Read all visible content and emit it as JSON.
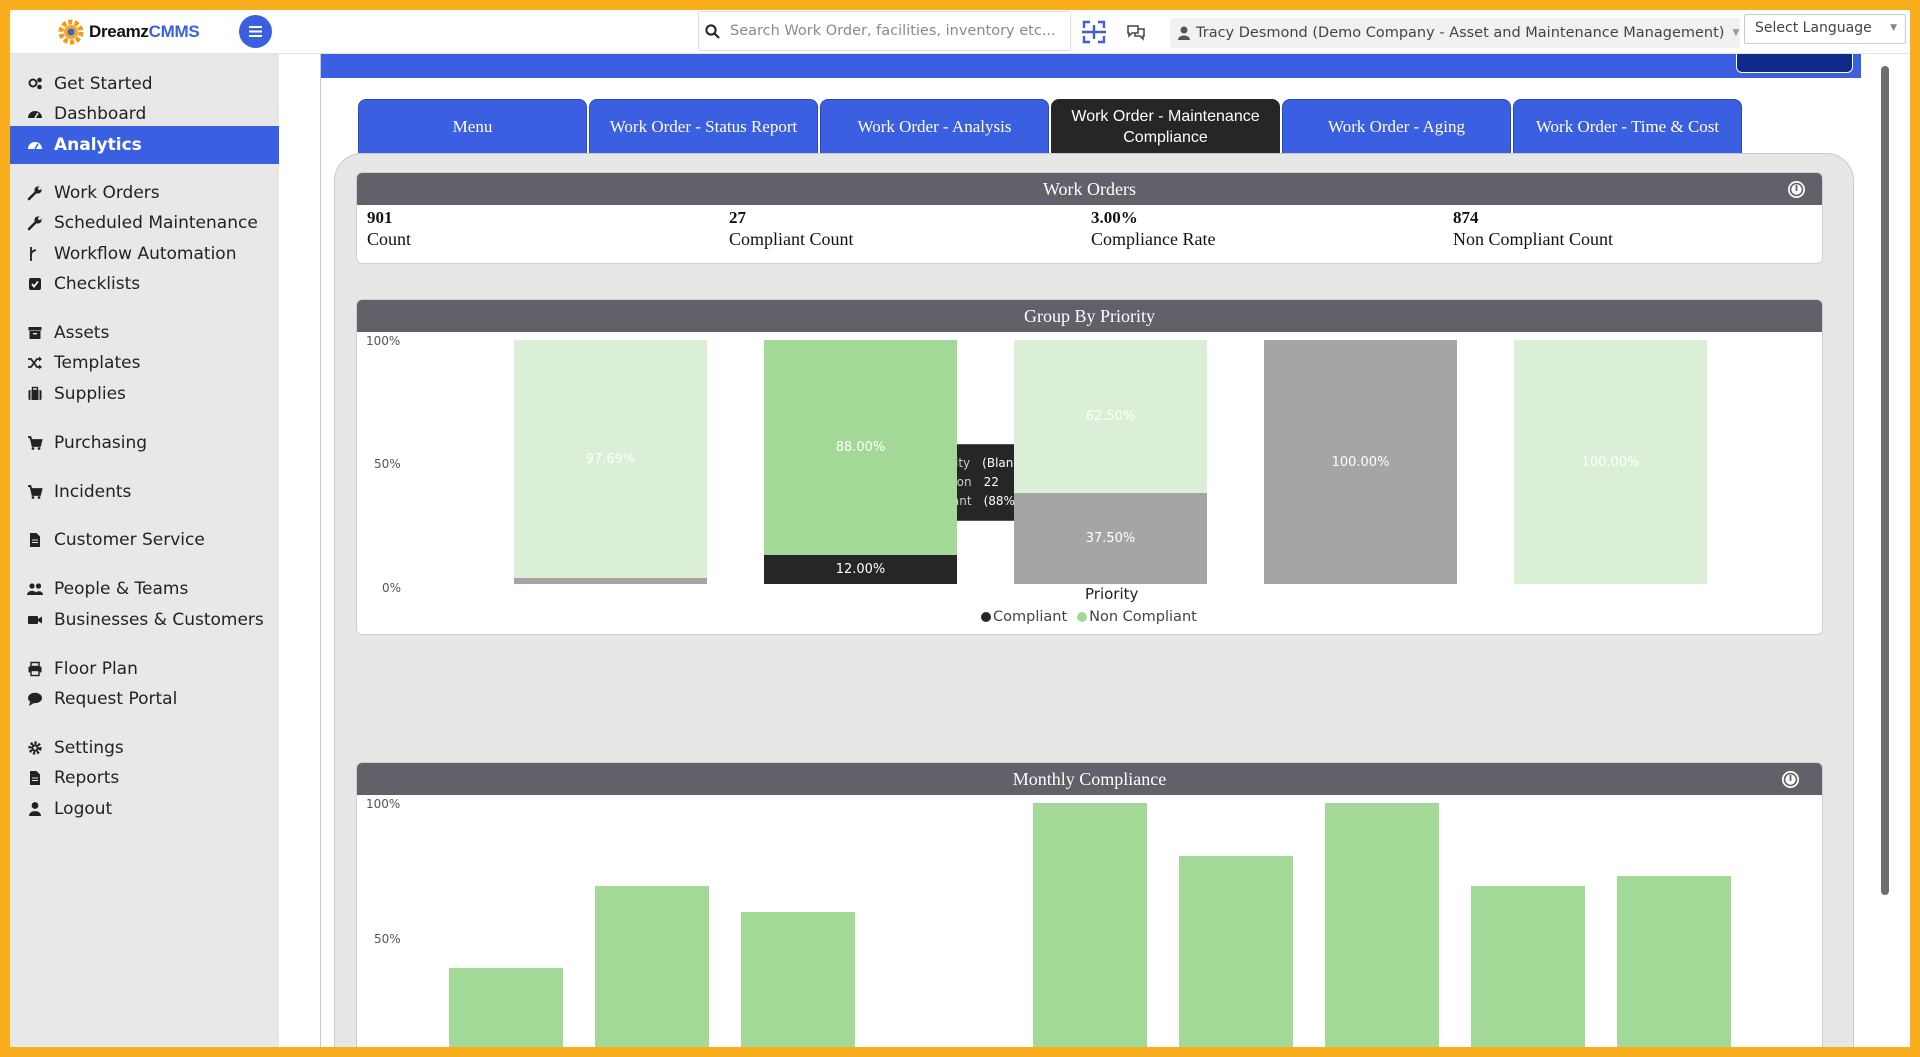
{
  "app": {
    "logo_word": "Dreamz",
    "logo_accent": "CMMS",
    "brand_color": "#3a5fe0",
    "frame_color": "#f9ae1e"
  },
  "header": {
    "search_placeholder": "Search Work Order, facilities, inventory etc...",
    "user_label": "Tracy Desmond (Demo Company - Asset and Maintenance Management)",
    "language_label": "Select Language",
    "icons": [
      "hamburger-icon",
      "search-icon",
      "scan-icon",
      "chat-icon",
      "user-icon"
    ]
  },
  "sidebar": {
    "items": [
      {
        "label": "Get Started",
        "icon": "cogs-icon"
      },
      {
        "label": "Dashboard",
        "icon": "dashboard-icon"
      },
      {
        "label": "Analytics",
        "icon": "analytics-icon",
        "active": true
      },
      {
        "label": "Work Orders",
        "icon": "wrench-icon"
      },
      {
        "label": "Scheduled Maintenance",
        "icon": "wrench-icon"
      },
      {
        "label": "Workflow Automation",
        "icon": "workflow-icon"
      },
      {
        "label": "Checklists",
        "icon": "checkbox-icon"
      },
      {
        "label": "Assets",
        "icon": "archive-icon"
      },
      {
        "label": "Templates",
        "icon": "shuffle-icon"
      },
      {
        "label": "Supplies",
        "icon": "briefcase-icon"
      },
      {
        "label": "Purchasing",
        "icon": "cart-icon"
      },
      {
        "label": "Incidents",
        "icon": "cart-icon"
      },
      {
        "label": "Customer Service",
        "icon": "file-icon"
      },
      {
        "label": "People & Teams",
        "icon": "users-icon"
      },
      {
        "label": "Businesses & Customers",
        "icon": "video-icon"
      },
      {
        "label": "Floor Plan",
        "icon": "print-icon"
      },
      {
        "label": "Request Portal",
        "icon": "comment-icon"
      },
      {
        "label": "Settings",
        "icon": "gear-icon"
      },
      {
        "label": "Reports",
        "icon": "file-icon"
      },
      {
        "label": "Logout",
        "icon": "user-icon"
      }
    ]
  },
  "tabs": [
    {
      "label": "Menu"
    },
    {
      "label": "Work Order - Status Report"
    },
    {
      "label": "Work Order - Analysis"
    },
    {
      "label": "Work Order - Maintenance Compliance",
      "active": true
    },
    {
      "label": "Work Order - Aging"
    },
    {
      "label": "Work Order - Time & Cost"
    }
  ],
  "work_orders": {
    "title": "Work Orders",
    "metrics": [
      {
        "value": "901",
        "label": "Count"
      },
      {
        "value": "27",
        "label": "Compliant Count"
      },
      {
        "value": "3.00%",
        "label": "Compliance Rate"
      },
      {
        "value": "874",
        "label": "Non Compliant Count"
      }
    ]
  },
  "priority_card": {
    "title": "Group By Priority",
    "xlabel": "Priority",
    "y_ticks": [
      "100%",
      "50%",
      "0%"
    ],
    "tooltip": {
      "k1": "Priority",
      "v1": "(Blank)",
      "k2": "Non Compliant",
      "v2": "22 (88%)"
    }
  },
  "monthly_card": {
    "title": "Monthly Compliance",
    "y_ticks": [
      "100%",
      "50%"
    ]
  },
  "chart_data": [
    {
      "type": "bar",
      "stacked": true,
      "title": "Group By Priority",
      "xlabel": "Priority",
      "ylim": [
        0,
        100
      ],
      "categories": [
        "",
        "(Blank)",
        "",
        "",
        ""
      ],
      "series": [
        {
          "name": "Compliant",
          "color": "#262626",
          "values": [
            2.31,
            12.0,
            37.5,
            100.0,
            0.0
          ],
          "labels": [
            "",
            "12.00%",
            "37.50%",
            "100.00%",
            ""
          ]
        },
        {
          "name": "Non Compliant",
          "color": "#a3d997",
          "values": [
            97.69,
            88.0,
            62.5,
            0.0,
            100.0
          ],
          "labels": [
            "97.69%",
            "88.00%",
            "62.50%",
            "",
            "100.00%"
          ]
        }
      ],
      "legend": "bottom"
    },
    {
      "type": "bar",
      "title": "Monthly Compliance",
      "ylim": [
        0,
        100
      ],
      "series": [
        {
          "name": "Non Compliant",
          "color": "#a3d997",
          "values": [
            50,
            75,
            67,
            0,
            100,
            84,
            100,
            75,
            78
          ]
        }
      ]
    }
  ]
}
